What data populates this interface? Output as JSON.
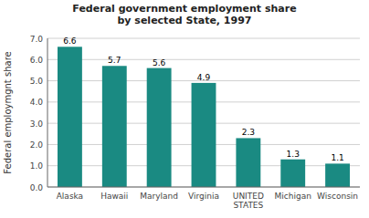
{
  "chart_data": {
    "type": "bar",
    "title": "Federal government employment share\nby selected State, 1997",
    "ylabel": "Federal employmgnt share",
    "categories": [
      "Alaska",
      "Hawaii",
      "Maryland",
      "Virginia",
      "UNITED\nSTATES",
      "Michigan",
      "Wisconsin"
    ],
    "values": [
      6.6,
      5.7,
      5.6,
      4.9,
      2.3,
      1.3,
      1.1
    ],
    "color": "#1a8a82",
    "ylim": [
      0,
      7.0
    ],
    "yticks": [
      {
        "value": 0,
        "label": "0.0"
      },
      {
        "value": 1,
        "label": "1.0"
      },
      {
        "value": 2,
        "label": "2.0"
      },
      {
        "value": 3,
        "label": "3.0"
      },
      {
        "value": 4,
        "label": "4.0"
      },
      {
        "value": 5,
        "label": "5.0"
      },
      {
        "value": 6,
        "label": "6.0"
      },
      {
        "value": 7,
        "label": "7.0"
      }
    ],
    "grid": true,
    "data_labels": true
  }
}
